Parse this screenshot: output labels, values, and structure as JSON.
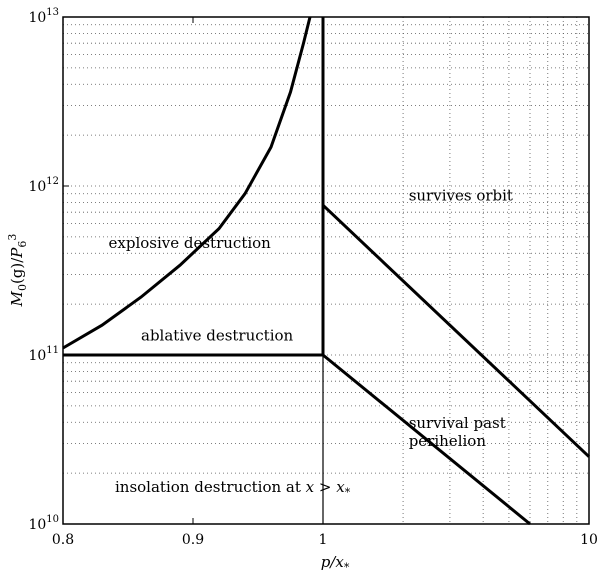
{
  "chart_data": {
    "type": "line",
    "xlabel": "p/x_*",
    "ylabel": "M_0(g)/P_6^3",
    "xscale": "piecewise: linear 0.8–1, log 1–10",
    "yscale": "log",
    "xlim": [
      0.8,
      10
    ],
    "ylim": [
      10000000000.0,
      10000000000000.0
    ],
    "grid": true,
    "x_ticks": [
      {
        "value": 0.8,
        "label": "0.8"
      },
      {
        "value": 0.9,
        "label": "0.9"
      },
      {
        "value": 1,
        "label": "1"
      },
      {
        "value": 10,
        "label": "10"
      }
    ],
    "y_ticks": [
      {
        "value": 10000000000.0,
        "base": "10",
        "exp": "10"
      },
      {
        "value": 100000000000.0,
        "base": "10",
        "exp": "11"
      },
      {
        "value": 1000000000000.0,
        "base": "10",
        "exp": "12"
      },
      {
        "value": 10000000000000.0,
        "base": "10",
        "exp": "13"
      }
    ],
    "curves": [
      {
        "id": "explosive-ablative-boundary",
        "x": [
          0.8,
          0.83,
          0.86,
          0.89,
          0.92,
          0.94,
          0.96,
          0.975,
          0.985,
          0.99
        ],
        "y": [
          110000000000.0,
          150000000000.0,
          220000000000.0,
          340000000000.0,
          560000000000.0,
          900000000000.0,
          1700000000000.0,
          3600000000000.0,
          7000000000000.0,
          10000000000000.0
        ]
      },
      {
        "id": "p-equals-x-star",
        "x": [
          1,
          1
        ],
        "y": [
          100000000000.0,
          10000000000000.0
        ]
      },
      {
        "id": "ablative-insolation-boundary",
        "x": [
          0.8,
          1
        ],
        "y": [
          100000000000.0,
          100000000000.0
        ]
      },
      {
        "id": "survives-orbit-boundary",
        "x": [
          1,
          10
        ],
        "y": [
          770000000000.0,
          25000000000.0
        ]
      },
      {
        "id": "survival-past-perihelion-boundary",
        "x": [
          1,
          6
        ],
        "y": [
          100000000000.0,
          10000000000.0
        ]
      }
    ],
    "annotations": [
      {
        "text": "explosive destruction",
        "x": 0.835,
        "y": 430000000000.0
      },
      {
        "text": "survives orbit",
        "x": 2.1,
        "y": 820000000000.0
      },
      {
        "text": "ablative destruction",
        "x": 0.86,
        "y": 122000000000.0
      },
      {
        "text": "survival past",
        "x": 2.1,
        "y": 37000000000.0
      },
      {
        "text": "perihelion",
        "x": 2.1,
        "y": 29000000000.0
      },
      {
        "text": "insolation destruction at x > x_*",
        "x": 0.84,
        "y": 15500000000.0
      }
    ]
  }
}
